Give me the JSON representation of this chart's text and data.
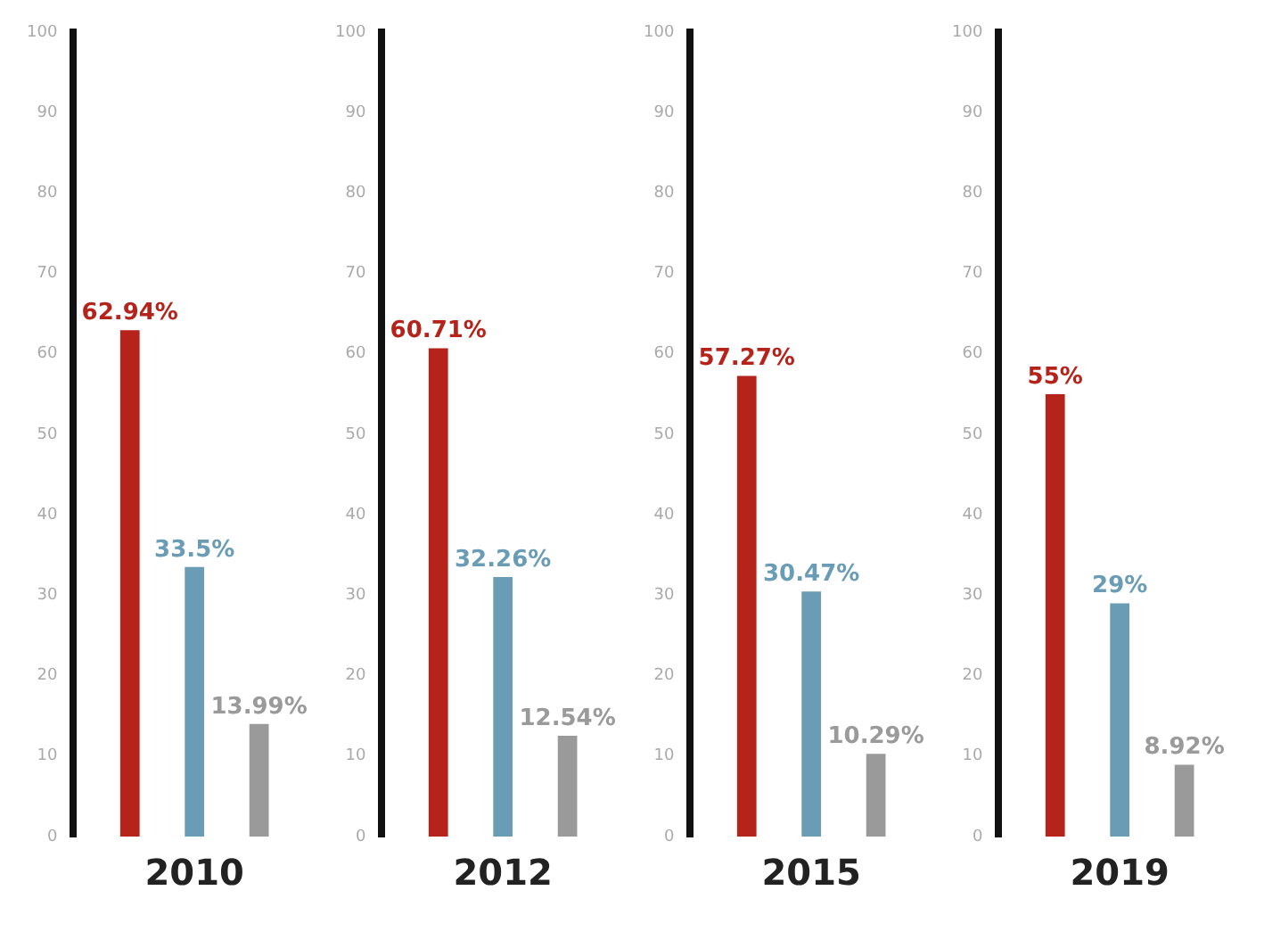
{
  "chart_data": [
    {
      "type": "bar",
      "categories": [
        "2010"
      ],
      "series": [
        {
          "color": "#b5231b",
          "values": [
            62.94
          ],
          "value_labels": [
            "62.94%"
          ]
        },
        {
          "color": "#6a9db5",
          "values": [
            33.5
          ],
          "value_labels": [
            "33.5%"
          ]
        },
        {
          "color": "#9a9a9a",
          "values": [
            13.99
          ],
          "value_labels": [
            "13.99%"
          ]
        }
      ],
      "ylim": [
        0,
        100
      ],
      "yticks": [
        0,
        10,
        20,
        30,
        40,
        50,
        60,
        70,
        80,
        90,
        100
      ],
      "grid": false
    },
    {
      "type": "bar",
      "categories": [
        "2012"
      ],
      "series": [
        {
          "color": "#b5231b",
          "values": [
            60.71
          ],
          "value_labels": [
            "60.71%"
          ]
        },
        {
          "color": "#6a9db5",
          "values": [
            32.26
          ],
          "value_labels": [
            "32.26%"
          ]
        },
        {
          "color": "#9a9a9a",
          "values": [
            12.54
          ],
          "value_labels": [
            "12.54%"
          ]
        }
      ],
      "ylim": [
        0,
        100
      ],
      "yticks": [
        0,
        10,
        20,
        30,
        40,
        50,
        60,
        70,
        80,
        90,
        100
      ],
      "grid": false
    },
    {
      "type": "bar",
      "categories": [
        "2015"
      ],
      "series": [
        {
          "color": "#b5231b",
          "values": [
            57.27
          ],
          "value_labels": [
            "57.27%"
          ]
        },
        {
          "color": "#6a9db5",
          "values": [
            30.47
          ],
          "value_labels": [
            "30.47%"
          ]
        },
        {
          "color": "#9a9a9a",
          "values": [
            10.29
          ],
          "value_labels": [
            "10.29%"
          ]
        }
      ],
      "ylim": [
        0,
        100
      ],
      "yticks": [
        0,
        10,
        20,
        30,
        40,
        50,
        60,
        70,
        80,
        90,
        100
      ],
      "grid": false
    },
    {
      "type": "bar",
      "categories": [
        "2019"
      ],
      "series": [
        {
          "color": "#b5231b",
          "values": [
            55
          ],
          "value_labels": [
            "55%"
          ]
        },
        {
          "color": "#6a9db5",
          "values": [
            29
          ],
          "value_labels": [
            "29%"
          ]
        },
        {
          "color": "#9a9a9a",
          "values": [
            8.92
          ],
          "value_labels": [
            "8.92%"
          ]
        }
      ],
      "ylim": [
        0,
        100
      ],
      "yticks": [
        0,
        10,
        20,
        30,
        40,
        50,
        60,
        70,
        80,
        90,
        100
      ],
      "grid": false
    }
  ]
}
